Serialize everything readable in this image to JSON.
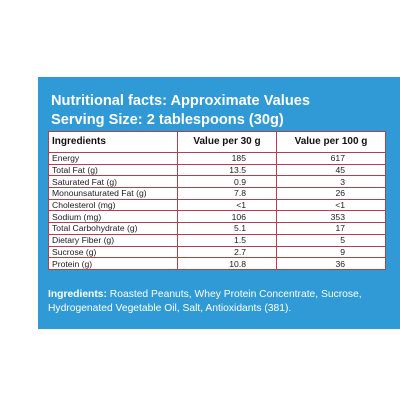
{
  "heading": {
    "line1": "Nutritional facts: Approximate Values",
    "line2": "Serving Size: 2 tablespoons (30g)"
  },
  "table": {
    "headers": [
      "Ingredients",
      "Value per 30 g",
      "Value per 100 g"
    ],
    "rows": [
      [
        "Energy",
        "185",
        "617"
      ],
      [
        "Total Fat (g)",
        "13.5",
        "45"
      ],
      [
        "Saturated Fat (g)",
        "0.9",
        "3"
      ],
      [
        "Monounsaturated Fat (g)",
        "7.8",
        "26"
      ],
      [
        "Cholesterol (mg)",
        "<1",
        "<1"
      ],
      [
        "Sodium (mg)",
        "106",
        "353"
      ],
      [
        "Total Carbohydrate (g)",
        "5.1",
        "17"
      ],
      [
        "Dietary Fiber (g)",
        "1.5",
        "5"
      ],
      [
        "Sucrose (g)",
        "2.7",
        "9"
      ],
      [
        "Protein (g)",
        "10.8",
        "36"
      ]
    ]
  },
  "ingredients": {
    "label": "Ingredients:",
    "text": " Roasted Peanuts, Whey Protein Concentrate, Sucrose, Hydrogenated Vegetable Oil, Salt, Antioxidants (381)."
  },
  "colors": {
    "panel": "#2f9ad6",
    "table_border": "#b3404a",
    "heading_text": "#ffffff"
  }
}
